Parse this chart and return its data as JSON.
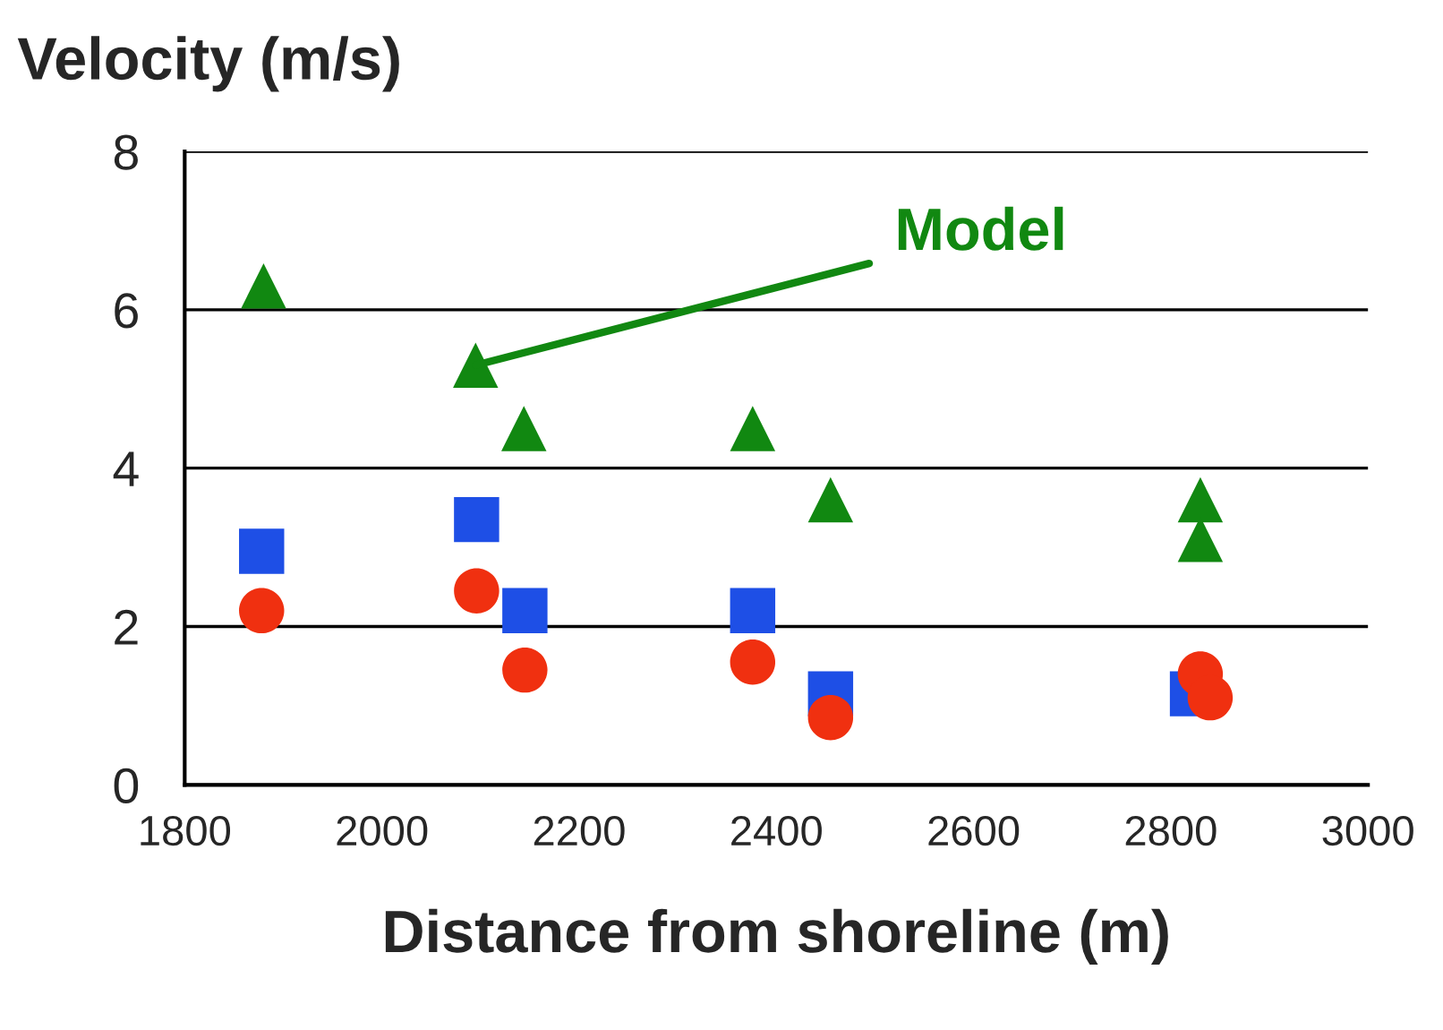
{
  "chart_data": {
    "type": "scatter",
    "xlabel": "Distance from shoreline (m)",
    "ylabel": "Velocity (m/s)",
    "xlim": [
      1800,
      3000
    ],
    "xticks": [
      1800,
      2000,
      2200,
      2400,
      2600,
      2800,
      3000
    ],
    "ylim": [
      0,
      8
    ],
    "yticks": [
      0,
      2,
      4,
      6,
      8
    ],
    "grid": "y",
    "series": [
      {
        "color": "#118811",
        "marker": "triangle",
        "x": [
          1880,
          2095,
          2144,
          2376,
          2455,
          2830,
          2830
        ],
        "values": [
          6.3,
          5.3,
          4.5,
          4.5,
          3.6,
          3.6,
          3.1
        ]
      },
      {
        "color": "#1e4fe6",
        "marker": "square",
        "x": [
          1878,
          2096,
          2145,
          2376,
          2455,
          2822
        ],
        "values": [
          2.95,
          3.35,
          2.2,
          2.2,
          1.15,
          1.15
        ]
      },
      {
        "color": "#f03010",
        "marker": "circle",
        "x": [
          1878,
          2096,
          2145,
          2376,
          2455,
          2830,
          2840
        ],
        "values": [
          2.2,
          2.45,
          1.45,
          1.55,
          0.85,
          1.4,
          1.1
        ]
      }
    ],
    "annotations": [
      {
        "text": "Model",
        "x": 2095,
        "y": 5.3
      }
    ]
  }
}
